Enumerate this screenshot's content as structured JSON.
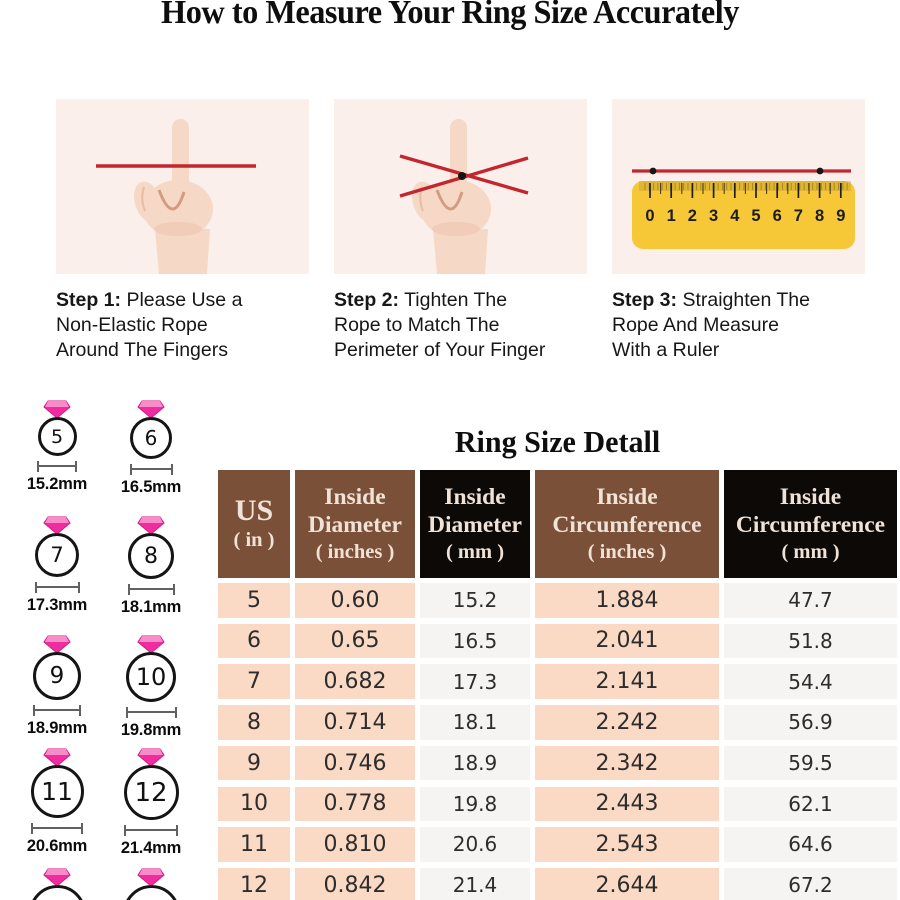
{
  "page_title": "How to Measure Your Ring Size Accurately",
  "steps": [
    {
      "label": "Step 1:",
      "lines": [
        "Please Use a",
        "Non-Elastic Rope",
        "Around The Fingers"
      ],
      "illustration": "index-finger-with-rope"
    },
    {
      "label": "Step 2:",
      "lines": [
        "Tighten The",
        "Rope to Match The",
        "Perimeter of Your Finger"
      ],
      "illustration": "finger-with-crossed-rope"
    },
    {
      "label": "Step 3:",
      "lines": [
        "Straighten The",
        "Rope And Measure",
        "With a Ruler"
      ],
      "illustration": "rope-stretched-on-ruler"
    }
  ],
  "ruler_numbers": [
    "0",
    "1",
    "2",
    "3",
    "4",
    "5",
    "6",
    "7",
    "8",
    "9"
  ],
  "ring_gauge": {
    "rings": [
      {
        "us": "5",
        "label": "15.2mm"
      },
      {
        "us": "6",
        "label": "16.5mm"
      },
      {
        "us": "7",
        "label": "17.3mm"
      },
      {
        "us": "8",
        "label": "18.1mm"
      },
      {
        "us": "9",
        "label": "18.9mm"
      },
      {
        "us": "10",
        "label": "19.8mm"
      },
      {
        "us": "11",
        "label": "20.6mm"
      },
      {
        "us": "12",
        "label": "21.4mm"
      }
    ],
    "partial_rings": 2
  },
  "table_section": {
    "title": "Ring Size Detall",
    "headers": [
      {
        "lines": [
          "US",
          "( in )"
        ],
        "theme": "brown"
      },
      {
        "lines": [
          "Inside",
          "Diameter",
          "( inches )"
        ],
        "theme": "brown"
      },
      {
        "lines": [
          "Inside",
          "Diameter",
          "( mm )"
        ],
        "theme": "black"
      },
      {
        "lines": [
          "Inside",
          "Circumference",
          "( inches )"
        ],
        "theme": "brown"
      },
      {
        "lines": [
          "Inside",
          "Circumference",
          "( mm )"
        ],
        "theme": "black"
      }
    ],
    "rows": [
      [
        "5",
        "0.60",
        "15.2",
        "1.884",
        "47.7"
      ],
      [
        "6",
        "0.65",
        "16.5",
        "2.041",
        "51.8"
      ],
      [
        "7",
        "0.682",
        "17.3",
        "2.141",
        "54.4"
      ],
      [
        "8",
        "0.714",
        "18.1",
        "2.242",
        "56.9"
      ],
      [
        "9",
        "0.746",
        "18.9",
        "2.342",
        "59.5"
      ],
      [
        "10",
        "0.778",
        "19.8",
        "2.443",
        "62.1"
      ],
      [
        "11",
        "0.810",
        "20.6",
        "2.543",
        "64.6"
      ],
      [
        "12",
        "0.842",
        "21.4",
        "2.644",
        "67.2"
      ]
    ]
  },
  "chart_data": {
    "type": "table",
    "title": "Ring Size Detall",
    "columns": [
      "US (in)",
      "Inside Diameter (inches)",
      "Inside Diameter (mm)",
      "Inside Circumference (inches)",
      "Inside Circumference (mm)"
    ],
    "rows": [
      [
        5,
        0.6,
        15.2,
        1.884,
        47.7
      ],
      [
        6,
        0.65,
        16.5,
        2.041,
        51.8
      ],
      [
        7,
        0.682,
        17.3,
        2.141,
        54.4
      ],
      [
        8,
        0.714,
        18.1,
        2.242,
        56.9
      ],
      [
        9,
        0.746,
        18.9,
        2.342,
        59.5
      ],
      [
        10,
        0.778,
        19.8,
        2.443,
        62.1
      ],
      [
        11,
        0.81,
        20.6,
        2.543,
        64.6
      ],
      [
        12,
        0.842,
        21.4,
        2.644,
        67.2
      ]
    ]
  },
  "colors": {
    "rope_red": "#c2262e",
    "diamond_pink": "#f02d9e",
    "diamond_light": "#f78cc9",
    "header_brown": "#7a5138",
    "header_black": "#0c0907",
    "cell_peach": "#fbdac5",
    "cell_light": "#f6f4f2",
    "ruler_yellow": "#f6c838",
    "figure_bg": "#faefea"
  }
}
